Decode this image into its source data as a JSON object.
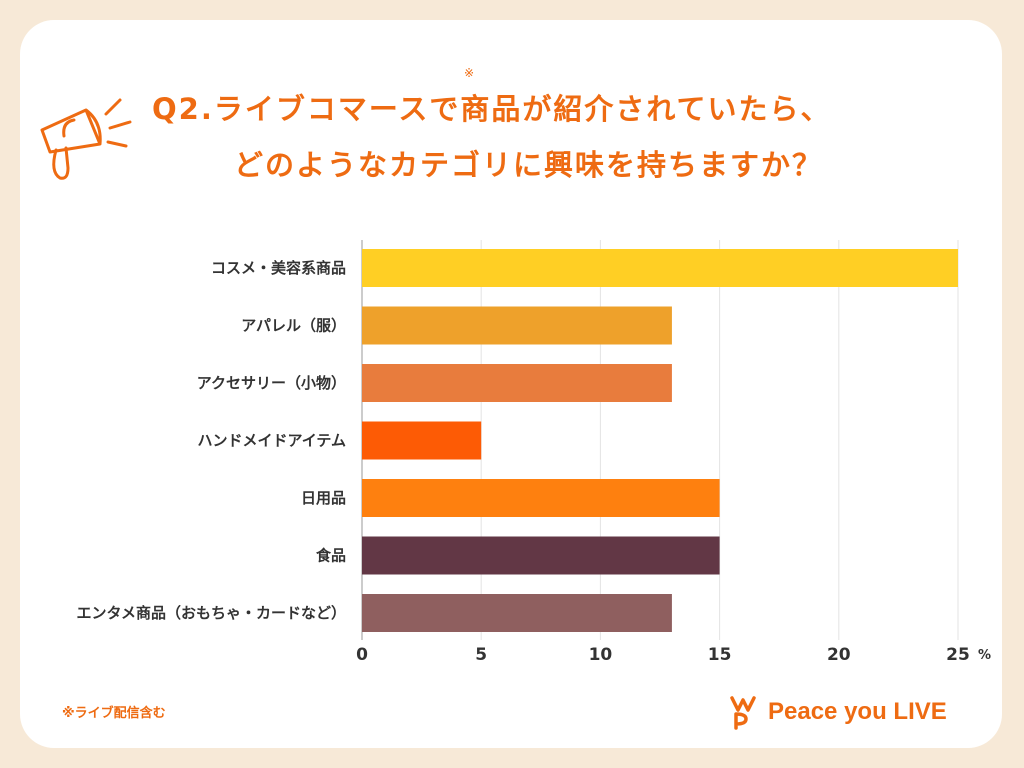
{
  "title": {
    "line1": "Q2.ライブコマースで商品が紹介されていたら、",
    "line2": "どのようなカテゴリに興味を持ちますか？",
    "note_mark": "※"
  },
  "footnote": "※ライブ配信含む",
  "brand": {
    "name": "Peace you LIVE"
  },
  "chart_data": {
    "type": "bar",
    "orientation": "horizontal",
    "title": "Q2.ライブコマースで商品が紹介されていたら、どのようなカテゴリに興味を持ちますか？",
    "categories": [
      "コスメ・美容系商品",
      "アパレル（服）",
      "アクセサリー（小物）",
      "ハンドメイドアイテム",
      "日用品",
      "食品",
      "エンタメ商品（おもちゃ・カードなど）"
    ],
    "values": [
      25,
      13,
      13,
      5,
      15,
      15,
      13
    ],
    "colors": [
      "#ffcf24",
      "#eea12b",
      "#e87c3d",
      "#fd5b05",
      "#fe800f",
      "#623745",
      "#8f5f5f"
    ],
    "x_ticks": [
      0,
      5,
      10,
      15,
      20,
      25
    ],
    "xlim": [
      0,
      25
    ],
    "unit": "%",
    "grid": true
  }
}
